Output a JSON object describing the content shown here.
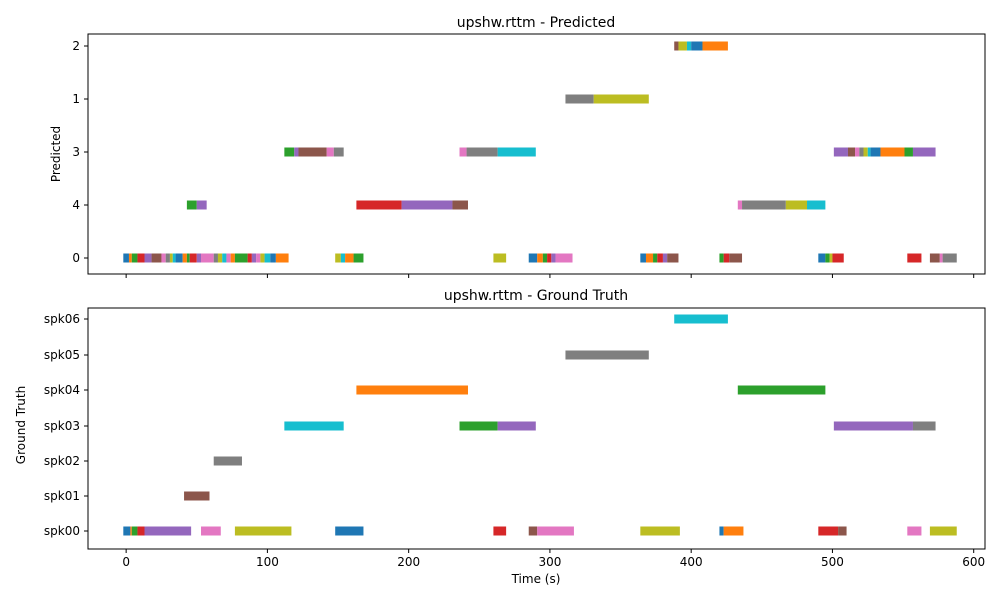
{
  "chart_data": [
    {
      "type": "broken-barh",
      "title": "upshw.rttm - Predicted",
      "ylabel": "Predicted",
      "categories": [
        "0",
        "4",
        "3",
        "1",
        "2"
      ],
      "xlim": [
        -27,
        608
      ],
      "xticks": [
        0,
        100,
        200,
        300,
        400,
        500,
        600
      ],
      "show_xtick_labels": false,
      "grid": false,
      "segments": [
        {
          "row": "0",
          "start": -2,
          "end": 2,
          "color": "#1f77b4"
        },
        {
          "row": "0",
          "start": 2,
          "end": 4,
          "color": "#ff7f0e"
        },
        {
          "row": "0",
          "start": 4,
          "end": 8,
          "color": "#2ca02c"
        },
        {
          "row": "0",
          "start": 8,
          "end": 13,
          "color": "#d62728"
        },
        {
          "row": "0",
          "start": 13,
          "end": 18,
          "color": "#9467bd"
        },
        {
          "row": "0",
          "start": 18,
          "end": 25,
          "color": "#8c564b"
        },
        {
          "row": "0",
          "start": 25,
          "end": 28,
          "color": "#e377c2"
        },
        {
          "row": "0",
          "start": 28,
          "end": 31,
          "color": "#7f7f7f"
        },
        {
          "row": "0",
          "start": 31,
          "end": 33,
          "color": "#bcbd22"
        },
        {
          "row": "0",
          "start": 33,
          "end": 35,
          "color": "#17becf"
        },
        {
          "row": "0",
          "start": 35,
          "end": 40,
          "color": "#1f77b4"
        },
        {
          "row": "0",
          "start": 40,
          "end": 43,
          "color": "#ff7f0e"
        },
        {
          "row": "0",
          "start": 43,
          "end": 45,
          "color": "#2ca02c"
        },
        {
          "row": "0",
          "start": 45,
          "end": 50,
          "color": "#d62728"
        },
        {
          "row": "0",
          "start": 50,
          "end": 53,
          "color": "#9467bd"
        },
        {
          "row": "0",
          "start": 53,
          "end": 62,
          "color": "#e377c2"
        },
        {
          "row": "0",
          "start": 62,
          "end": 65,
          "color": "#7f7f7f"
        },
        {
          "row": "0",
          "start": 65,
          "end": 68,
          "color": "#bcbd22"
        },
        {
          "row": "0",
          "start": 68,
          "end": 71,
          "color": "#17becf"
        },
        {
          "row": "0",
          "start": 71,
          "end": 74,
          "color": "#e377c2"
        },
        {
          "row": "0",
          "start": 74,
          "end": 77,
          "color": "#ff7f0e"
        },
        {
          "row": "0",
          "start": 77,
          "end": 86,
          "color": "#2ca02c"
        },
        {
          "row": "0",
          "start": 86,
          "end": 89,
          "color": "#d62728"
        },
        {
          "row": "0",
          "start": 89,
          "end": 92,
          "color": "#9467bd"
        },
        {
          "row": "0",
          "start": 92,
          "end": 95,
          "color": "#e377c2"
        },
        {
          "row": "0",
          "start": 95,
          "end": 98,
          "color": "#bcbd22"
        },
        {
          "row": "0",
          "start": 98,
          "end": 102,
          "color": "#17becf"
        },
        {
          "row": "0",
          "start": 102,
          "end": 106,
          "color": "#1f77b4"
        },
        {
          "row": "0",
          "start": 106,
          "end": 115,
          "color": "#ff7f0e"
        },
        {
          "row": "0",
          "start": 148,
          "end": 152,
          "color": "#bcbd22"
        },
        {
          "row": "0",
          "start": 152,
          "end": 155,
          "color": "#17becf"
        },
        {
          "row": "0",
          "start": 155,
          "end": 161,
          "color": "#ff7f0e"
        },
        {
          "row": "0",
          "start": 161,
          "end": 168,
          "color": "#2ca02c"
        },
        {
          "row": "0",
          "start": 260,
          "end": 269,
          "color": "#bcbd22"
        },
        {
          "row": "0",
          "start": 285,
          "end": 291,
          "color": "#1f77b4"
        },
        {
          "row": "0",
          "start": 291,
          "end": 295,
          "color": "#ff7f0e"
        },
        {
          "row": "0",
          "start": 295,
          "end": 298,
          "color": "#2ca02c"
        },
        {
          "row": "0",
          "start": 298,
          "end": 301,
          "color": "#d62728"
        },
        {
          "row": "0",
          "start": 301,
          "end": 304,
          "color": "#9467bd"
        },
        {
          "row": "0",
          "start": 304,
          "end": 316,
          "color": "#e377c2"
        },
        {
          "row": "0",
          "start": 364,
          "end": 368,
          "color": "#1f77b4"
        },
        {
          "row": "0",
          "start": 368,
          "end": 373,
          "color": "#ff7f0e"
        },
        {
          "row": "0",
          "start": 373,
          "end": 376,
          "color": "#2ca02c"
        },
        {
          "row": "0",
          "start": 376,
          "end": 380,
          "color": "#d62728"
        },
        {
          "row": "0",
          "start": 380,
          "end": 383,
          "color": "#9467bd"
        },
        {
          "row": "0",
          "start": 383,
          "end": 391,
          "color": "#8c564b"
        },
        {
          "row": "0",
          "start": 420,
          "end": 423,
          "color": "#2ca02c"
        },
        {
          "row": "0",
          "start": 423,
          "end": 427,
          "color": "#d62728"
        },
        {
          "row": "0",
          "start": 427,
          "end": 436,
          "color": "#8c564b"
        },
        {
          "row": "0",
          "start": 490,
          "end": 495,
          "color": "#1f77b4"
        },
        {
          "row": "0",
          "start": 495,
          "end": 498,
          "color": "#2ca02c"
        },
        {
          "row": "0",
          "start": 498,
          "end": 500,
          "color": "#bcbd22"
        },
        {
          "row": "0",
          "start": 500,
          "end": 508,
          "color": "#d62728"
        },
        {
          "row": "0",
          "start": 553,
          "end": 563,
          "color": "#d62728"
        },
        {
          "row": "0",
          "start": 569,
          "end": 576,
          "color": "#8c564b"
        },
        {
          "row": "0",
          "start": 576,
          "end": 578,
          "color": "#e377c2"
        },
        {
          "row": "0",
          "start": 578,
          "end": 588,
          "color": "#7f7f7f"
        },
        {
          "row": "4",
          "start": 43,
          "end": 50,
          "color": "#2ca02c"
        },
        {
          "row": "4",
          "start": 50,
          "end": 57,
          "color": "#9467bd"
        },
        {
          "row": "4",
          "start": 163,
          "end": 195,
          "color": "#d62728"
        },
        {
          "row": "4",
          "start": 195,
          "end": 231,
          "color": "#9467bd"
        },
        {
          "row": "4",
          "start": 231,
          "end": 242,
          "color": "#8c564b"
        },
        {
          "row": "4",
          "start": 433,
          "end": 436,
          "color": "#e377c2"
        },
        {
          "row": "4",
          "start": 436,
          "end": 467,
          "color": "#7f7f7f"
        },
        {
          "row": "4",
          "start": 467,
          "end": 482,
          "color": "#bcbd22"
        },
        {
          "row": "4",
          "start": 482,
          "end": 495,
          "color": "#17becf"
        },
        {
          "row": "3",
          "start": 112,
          "end": 119,
          "color": "#2ca02c"
        },
        {
          "row": "3",
          "start": 119,
          "end": 122,
          "color": "#9467bd"
        },
        {
          "row": "3",
          "start": 122,
          "end": 142,
          "color": "#8c564b"
        },
        {
          "row": "3",
          "start": 142,
          "end": 147,
          "color": "#e377c2"
        },
        {
          "row": "3",
          "start": 147,
          "end": 154,
          "color": "#7f7f7f"
        },
        {
          "row": "3",
          "start": 236,
          "end": 241,
          "color": "#e377c2"
        },
        {
          "row": "3",
          "start": 241,
          "end": 263,
          "color": "#7f7f7f"
        },
        {
          "row": "3",
          "start": 263,
          "end": 290,
          "color": "#17becf"
        },
        {
          "row": "3",
          "start": 501,
          "end": 511,
          "color": "#9467bd"
        },
        {
          "row": "3",
          "start": 511,
          "end": 516,
          "color": "#8c564b"
        },
        {
          "row": "3",
          "start": 516,
          "end": 519,
          "color": "#e377c2"
        },
        {
          "row": "3",
          "start": 519,
          "end": 522,
          "color": "#7f7f7f"
        },
        {
          "row": "3",
          "start": 522,
          "end": 525,
          "color": "#bcbd22"
        },
        {
          "row": "3",
          "start": 525,
          "end": 527,
          "color": "#17becf"
        },
        {
          "row": "3",
          "start": 527,
          "end": 534,
          "color": "#1f77b4"
        },
        {
          "row": "3",
          "start": 534,
          "end": 551,
          "color": "#ff7f0e"
        },
        {
          "row": "3",
          "start": 551,
          "end": 557,
          "color": "#2ca02c"
        },
        {
          "row": "3",
          "start": 557,
          "end": 573,
          "color": "#9467bd"
        },
        {
          "row": "1",
          "start": 311,
          "end": 331,
          "color": "#7f7f7f"
        },
        {
          "row": "1",
          "start": 331,
          "end": 370,
          "color": "#bcbd22"
        },
        {
          "row": "2",
          "start": 388,
          "end": 391,
          "color": "#8c564b"
        },
        {
          "row": "2",
          "start": 391,
          "end": 397,
          "color": "#bcbd22"
        },
        {
          "row": "2",
          "start": 397,
          "end": 400,
          "color": "#17becf"
        },
        {
          "row": "2",
          "start": 400,
          "end": 408,
          "color": "#1f77b4"
        },
        {
          "row": "2",
          "start": 408,
          "end": 426,
          "color": "#ff7f0e"
        }
      ]
    },
    {
      "type": "broken-barh",
      "title": "upshw.rttm - Ground Truth",
      "ylabel": "Ground Truth",
      "xlabel": "Time (s)",
      "categories": [
        "spk00",
        "spk01",
        "spk02",
        "spk03",
        "spk04",
        "spk05",
        "spk06"
      ],
      "xlim": [
        -27,
        608
      ],
      "xticks": [
        0,
        100,
        200,
        300,
        400,
        500,
        600
      ],
      "show_xtick_labels": true,
      "grid": false,
      "segments": [
        {
          "row": "spk00",
          "start": -2,
          "end": 3,
          "color": "#1f77b4"
        },
        {
          "row": "spk00",
          "start": 3,
          "end": 4,
          "color": "#ff7f0e"
        },
        {
          "row": "spk00",
          "start": 4,
          "end": 8,
          "color": "#2ca02c"
        },
        {
          "row": "spk00",
          "start": 8,
          "end": 13,
          "color": "#d62728"
        },
        {
          "row": "spk00",
          "start": 13,
          "end": 46,
          "color": "#9467bd"
        },
        {
          "row": "spk00",
          "start": 53,
          "end": 67,
          "color": "#e377c2"
        },
        {
          "row": "spk00",
          "start": 77,
          "end": 117,
          "color": "#bcbd22"
        },
        {
          "row": "spk00",
          "start": 148,
          "end": 168,
          "color": "#1f77b4"
        },
        {
          "row": "spk00",
          "start": 260,
          "end": 269,
          "color": "#d62728"
        },
        {
          "row": "spk00",
          "start": 285,
          "end": 291,
          "color": "#8c564b"
        },
        {
          "row": "spk00",
          "start": 291,
          "end": 317,
          "color": "#e377c2"
        },
        {
          "row": "spk00",
          "start": 364,
          "end": 392,
          "color": "#bcbd22"
        },
        {
          "row": "spk00",
          "start": 420,
          "end": 423,
          "color": "#1f77b4"
        },
        {
          "row": "spk00",
          "start": 423,
          "end": 437,
          "color": "#ff7f0e"
        },
        {
          "row": "spk00",
          "start": 490,
          "end": 504,
          "color": "#d62728"
        },
        {
          "row": "spk00",
          "start": 504,
          "end": 510,
          "color": "#8c564b"
        },
        {
          "row": "spk00",
          "start": 553,
          "end": 563,
          "color": "#e377c2"
        },
        {
          "row": "spk00",
          "start": 569,
          "end": 588,
          "color": "#bcbd22"
        },
        {
          "row": "spk01",
          "start": 41,
          "end": 59,
          "color": "#8c564b"
        },
        {
          "row": "spk02",
          "start": 62,
          "end": 82,
          "color": "#7f7f7f"
        },
        {
          "row": "spk03",
          "start": 112,
          "end": 154,
          "color": "#17becf"
        },
        {
          "row": "spk03",
          "start": 236,
          "end": 263,
          "color": "#2ca02c"
        },
        {
          "row": "spk03",
          "start": 263,
          "end": 290,
          "color": "#9467bd"
        },
        {
          "row": "spk03",
          "start": 501,
          "end": 557,
          "color": "#9467bd"
        },
        {
          "row": "spk03",
          "start": 557,
          "end": 573,
          "color": "#7f7f7f"
        },
        {
          "row": "spk04",
          "start": 163,
          "end": 242,
          "color": "#ff7f0e"
        },
        {
          "row": "spk04",
          "start": 433,
          "end": 495,
          "color": "#2ca02c"
        },
        {
          "row": "spk05",
          "start": 311,
          "end": 370,
          "color": "#7f7f7f"
        },
        {
          "row": "spk06",
          "start": 388,
          "end": 426,
          "color": "#17becf"
        }
      ]
    }
  ]
}
